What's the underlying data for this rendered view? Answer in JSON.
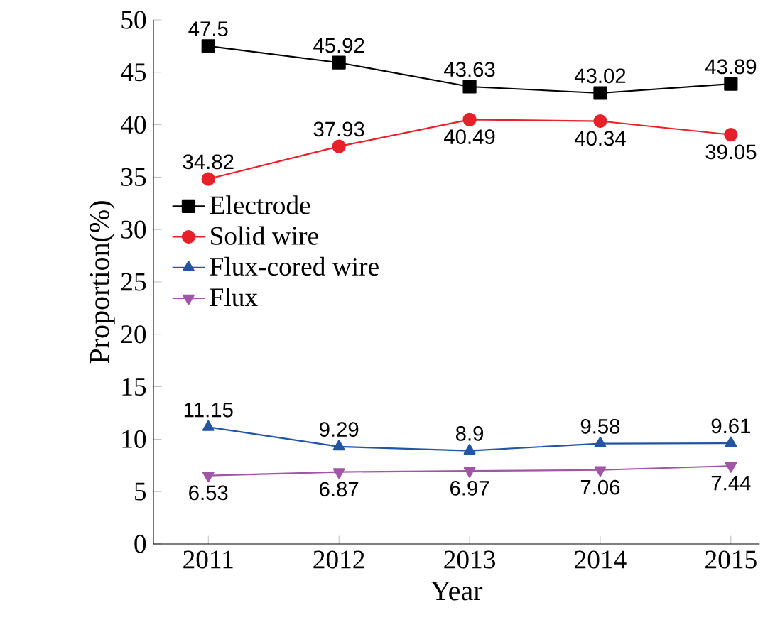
{
  "chart_data": {
    "type": "line",
    "xlabel": "Year",
    "ylabel": "Proportion(%)",
    "x": [
      2011,
      2012,
      2013,
      2014,
      2015
    ],
    "series": [
      {
        "name": "Electrode",
        "color": "#000000",
        "marker": "square",
        "values": [
          47.5,
          45.92,
          43.63,
          43.02,
          43.89
        ]
      },
      {
        "name": "Solid wire",
        "color": "#e8202a",
        "marker": "circle",
        "values": [
          34.82,
          37.93,
          40.49,
          40.34,
          39.05
        ]
      },
      {
        "name": "Flux-cored wire",
        "color": "#2455a4",
        "marker": "triangle",
        "values": [
          11.15,
          9.29,
          8.9,
          9.58,
          9.61
        ]
      },
      {
        "name": "Flux",
        "color": "#a055a5",
        "marker": "triangle_down",
        "values": [
          6.53,
          6.87,
          6.97,
          7.06,
          7.44
        ]
      }
    ],
    "xlim": [
      2010.58,
      2015.22
    ],
    "xticks": [
      2011,
      2012,
      2013,
      2014,
      2015
    ],
    "ylim": [
      0,
      50
    ],
    "yticks": [
      0,
      5,
      10,
      15,
      20,
      25,
      30,
      35,
      40,
      45,
      50
    ],
    "data_labels": true,
    "legend": "left",
    "grid": false
  }
}
